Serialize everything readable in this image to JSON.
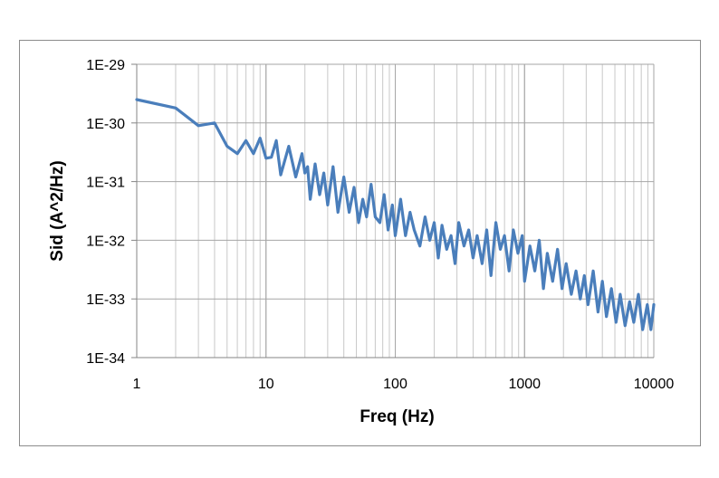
{
  "chart_data": {
    "type": "line",
    "title": "",
    "xlabel": "Freq (Hz)",
    "ylabel": "Sid (A^2/Hz)",
    "x_scale": "log",
    "y_scale": "log",
    "xlim": [
      1,
      10000
    ],
    "ylim": [
      1e-34,
      1e-29
    ],
    "x_tick_labels": [
      "1",
      "10",
      "100",
      "1000",
      "10000"
    ],
    "y_tick_labels": [
      "1E-29",
      "1E-30",
      "1E-31",
      "1E-32",
      "1E-33",
      "1E-34"
    ],
    "grid": true,
    "legend": "none",
    "line_color": "#4a7ebb",
    "series": [
      {
        "x": [
          1,
          2,
          3,
          4,
          5,
          6,
          7,
          8,
          9,
          10,
          11,
          12,
          13,
          15,
          17,
          19,
          20,
          21,
          22,
          24,
          26,
          28,
          30,
          33,
          36,
          40,
          44,
          48,
          52,
          56,
          60,
          65,
          70,
          76,
          82,
          88,
          95,
          100,
          110,
          120,
          130,
          140,
          155,
          170,
          185,
          200,
          215,
          230,
          250,
          270,
          290,
          310,
          340,
          370,
          400,
          430,
          470,
          510,
          550,
          600,
          650,
          700,
          760,
          820,
          890,
          960,
          1000,
          1100,
          1200,
          1300,
          1400,
          1500,
          1650,
          1800,
          1950,
          2100,
          2300,
          2500,
          2700,
          2900,
          3100,
          3400,
          3700,
          4000,
          4300,
          4700,
          5100,
          5500,
          6000,
          6500,
          7000,
          7600,
          8200,
          8900,
          9500,
          10000
        ],
        "y": [
          2.5e-30,
          1.8e-30,
          9e-31,
          1e-30,
          4e-31,
          3e-31,
          5e-31,
          3e-31,
          5.5e-31,
          2.5e-31,
          2.6e-31,
          5e-31,
          1.3e-31,
          4e-31,
          1.2e-31,
          3e-31,
          1.4e-31,
          1.8e-31,
          5e-32,
          2e-31,
          6e-32,
          1.4e-31,
          4e-32,
          1.8e-31,
          3e-32,
          1.2e-31,
          3e-32,
          8e-32,
          2e-32,
          5e-32,
          2.5e-32,
          9e-32,
          2.5e-32,
          2e-32,
          6e-32,
          1.5e-32,
          4e-32,
          1.2e-32,
          5e-32,
          1.2e-32,
          3e-32,
          1.5e-32,
          8e-33,
          2.5e-32,
          1e-32,
          2e-32,
          5e-33,
          1.8e-32,
          7e-33,
          1.2e-32,
          4e-33,
          2e-32,
          8e-33,
          1.5e-32,
          5e-33,
          1.2e-32,
          4e-33,
          1.5e-32,
          2.5e-33,
          2e-32,
          7e-33,
          1.2e-32,
          3e-33,
          1.5e-32,
          6e-33,
          1.2e-32,
          2e-33,
          8e-33,
          3e-33,
          1e-32,
          1.5e-33,
          6e-33,
          2e-33,
          7e-33,
          1.5e-33,
          4e-33,
          1.2e-33,
          3e-33,
          1e-33,
          2.5e-33,
          8e-34,
          3e-33,
          6e-34,
          2e-33,
          5e-34,
          1.5e-33,
          4e-34,
          1.2e-33,
          3.5e-34,
          9e-34,
          4e-34,
          1.2e-33,
          3e-34,
          8e-34,
          3e-34,
          8e-34
        ]
      }
    ]
  }
}
